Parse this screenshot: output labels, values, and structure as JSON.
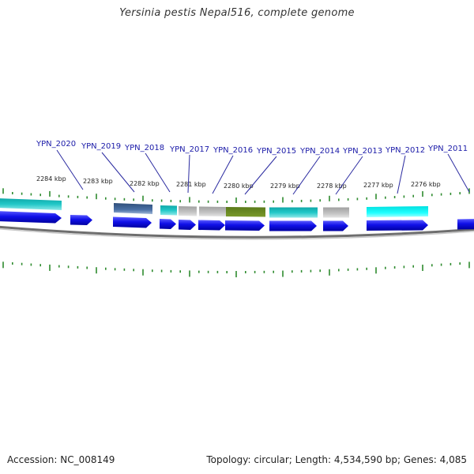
{
  "title": "Yersinia pestis Nepal516, complete genome",
  "accession_text": "Accession: NC_008149",
  "summary_text": "Topology: circular; Length: 4,534,590 bp; Genes: 4,085",
  "scale_labels": [
    "2284 kbp",
    "2283 kbp",
    "2282 kbp",
    "2281 kbp",
    "2280 kbp",
    "2279 kbp",
    "2278 kbp",
    "2277 kbp",
    "2276 kbp"
  ],
  "gene_labels": [
    "YPN_2020",
    "YPN_2019",
    "YPN_2018",
    "YPN_2017",
    "YPN_2016",
    "YPN_2015",
    "YPN_2014",
    "YPN_2013",
    "YPN_2012",
    "YPN_2011"
  ],
  "colors": {
    "label": "#1a1aa8",
    "leader": "#2a2aa0",
    "tick": "#2e8b2e",
    "gene_arrow": "#1010e8",
    "backbone": "#888888",
    "cog_teal": "#22c4c4",
    "cog_cyan": "#10f0f0",
    "cog_steel": "#4a6fa5",
    "cog_gray": "#bdbdbd",
    "cog_olive": "#6b8e23"
  }
}
